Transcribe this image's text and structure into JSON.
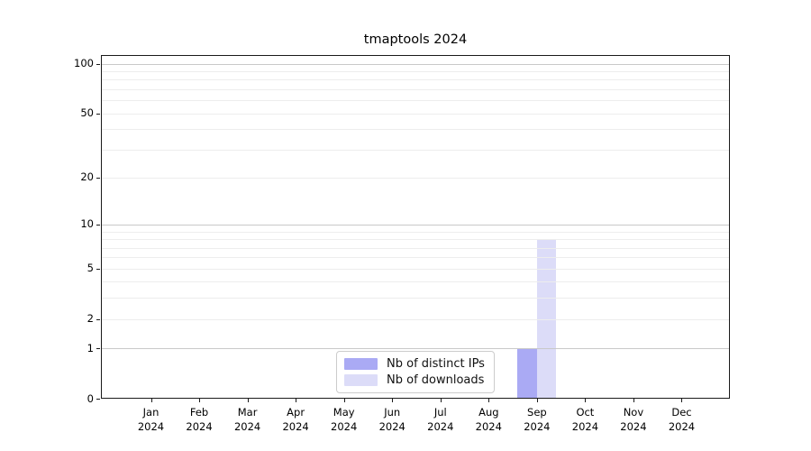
{
  "figure": {
    "background": "#ffffff"
  },
  "chart_data": {
    "type": "bar",
    "title": "tmaptools 2024",
    "categories": [
      "Jan",
      "Feb",
      "Mar",
      "Apr",
      "May",
      "Jun",
      "Jul",
      "Aug",
      "Sep",
      "Oct",
      "Nov",
      "Dec"
    ],
    "year_label": "2024",
    "series": [
      {
        "name": "Nb of distinct IPs",
        "color": "#aaaaf4",
        "values": [
          0,
          0,
          0,
          0,
          0,
          0,
          0,
          0,
          1,
          0,
          0,
          0
        ]
      },
      {
        "name": "Nb of downloads",
        "color": "#dcdcf8",
        "values": [
          0,
          0,
          0,
          0,
          0,
          0,
          0,
          0,
          8,
          0,
          0,
          0
        ]
      }
    ],
    "xlabel": "",
    "ylabel": "",
    "yscale": "log1p",
    "ylim": [
      0,
      100
    ],
    "yticks": [
      0,
      1,
      2,
      5,
      10,
      20,
      50,
      100
    ],
    "grid_minor": [
      2,
      3,
      4,
      5,
      6,
      7,
      8,
      9,
      20,
      30,
      40,
      50,
      60,
      70,
      80,
      90
    ],
    "grid_major": [
      1,
      10,
      100
    ],
    "grid": true,
    "legend_position": "bottom-center-inside",
    "colors": {
      "grid_major": "#c9c9c9",
      "grid_minor": "#ededed",
      "axis": "#1a1a1a",
      "text": "#000000"
    }
  }
}
